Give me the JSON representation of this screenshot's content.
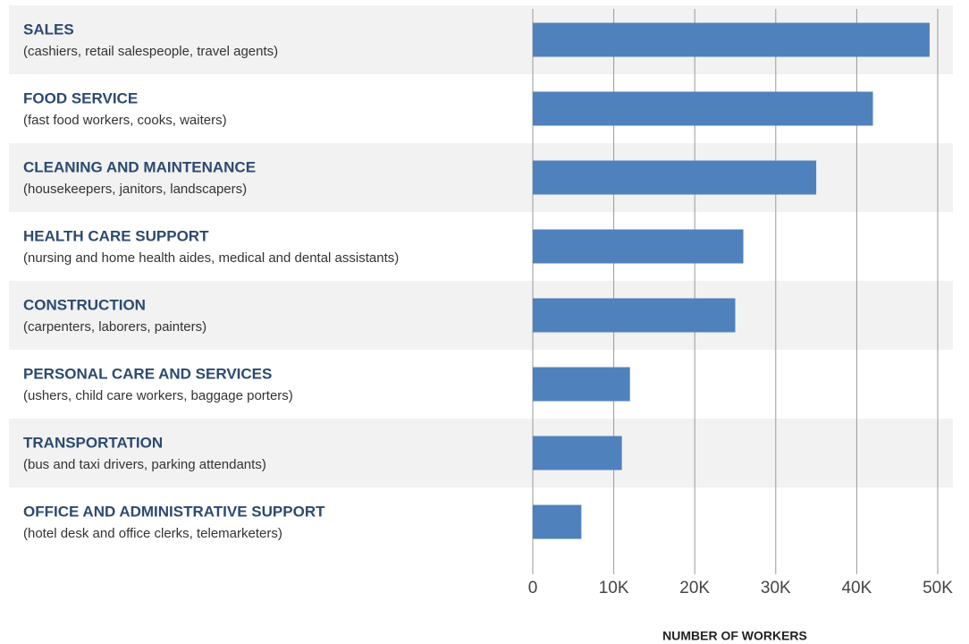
{
  "chart_data": {
    "type": "bar",
    "orientation": "horizontal",
    "categories": [
      "SALES",
      "FOOD SERVICE",
      "CLEANING AND MAINTENANCE",
      "HEALTH CARE SUPPORT",
      "CONSTRUCTION",
      "PERSONAL CARE AND SERVICES",
      "TRANSPORTATION",
      "OFFICE AND ADMINISTRATIVE SUPPORT"
    ],
    "descriptions": [
      "(cashiers, retail salespeople, travel agents)",
      "(fast food workers, cooks, waiters)",
      "(housekeepers, janitors, landscapers)",
      "(nursing and home health aides, medical and dental assistants)",
      "(carpenters, laborers, painters)",
      "(ushers, child care workers, baggage porters)",
      "(bus and taxi drivers, parking attendants)",
      "(hotel desk and office clerks, telemarketers)"
    ],
    "values": [
      49000,
      42000,
      35000,
      26000,
      25000,
      12000,
      11000,
      6000
    ],
    "color": "#4f81bd",
    "xlabel": "NUMBER OF WORKERS",
    "xlim": [
      0,
      50000
    ],
    "xticks": [
      0,
      {
        "value": 10000,
        "label": "10K"
      },
      {
        "value": 20000,
        "label": "20K"
      },
      {
        "value": 30000,
        "label": "30K"
      },
      {
        "value": 40000,
        "label": "40K"
      },
      {
        "value": 50000,
        "label": "50K"
      }
    ],
    "grid": true
  }
}
